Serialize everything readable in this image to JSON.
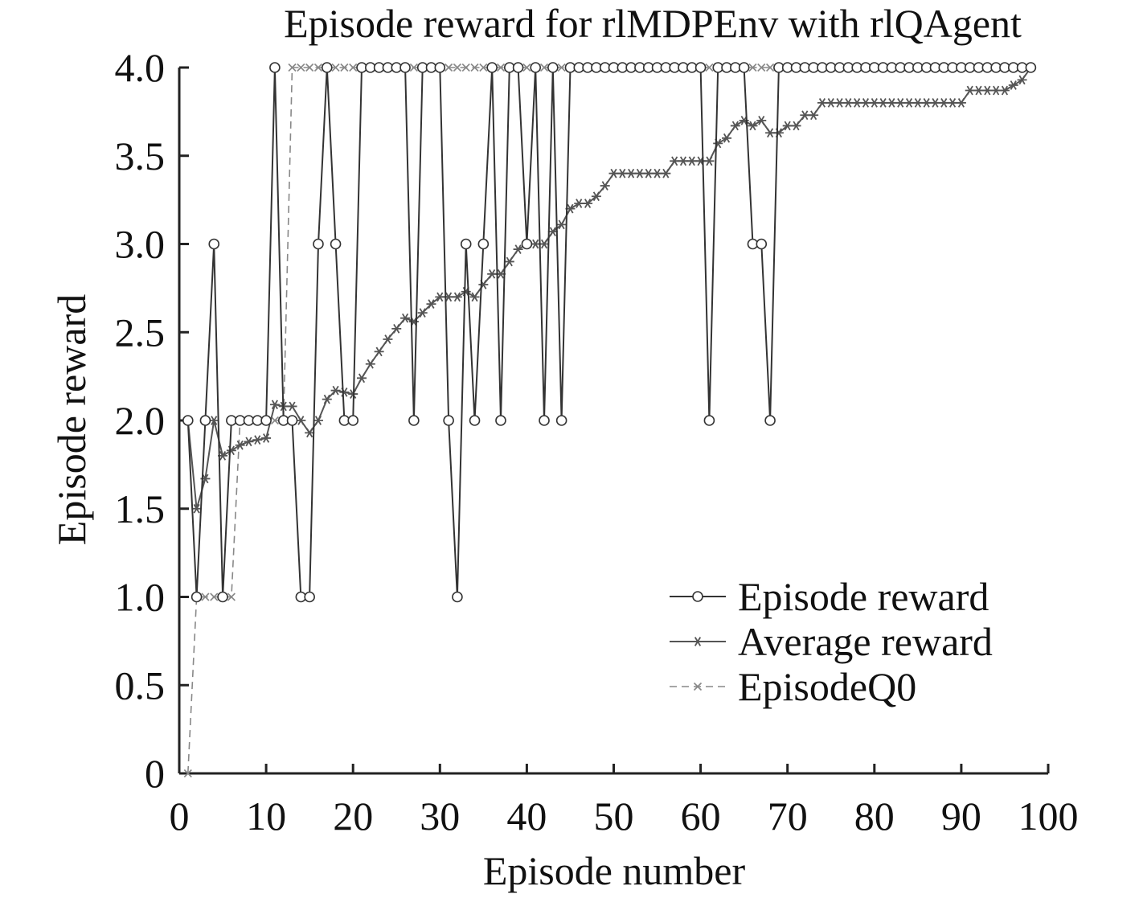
{
  "chart_data": {
    "type": "line",
    "title": "Episode reward for rlMDPEnv with rlQAgent",
    "xlabel": "Episode number",
    "ylabel": "Episode reward",
    "xlim": [
      0,
      100
    ],
    "ylim": [
      0,
      4
    ],
    "x_ticks": [
      0,
      10,
      20,
      30,
      40,
      50,
      60,
      70,
      80,
      90,
      100
    ],
    "x_tick_labels": [
      "0",
      "10",
      "20",
      "30",
      "40",
      "50",
      "60",
      "70",
      "80",
      "90",
      "100"
    ],
    "y_ticks": [
      0,
      0.5,
      1,
      1.5,
      2,
      2.5,
      3,
      3.5,
      4
    ],
    "y_tick_labels": [
      "0",
      "0.5",
      "1.0",
      "1.5",
      "2.0",
      "2.5",
      "3.0",
      "3.5",
      "4.0"
    ],
    "grid": false,
    "legend_position": "bottom-right",
    "episodes": [
      1,
      98
    ],
    "series": [
      {
        "name": "Episode reward",
        "color": "#333333",
        "marker": "circle",
        "line_style": "solid",
        "values": [
          2,
          1,
          2,
          3,
          1,
          2,
          2,
          2,
          2,
          2,
          4,
          2,
          2,
          1,
          1,
          3,
          4,
          3,
          2,
          2,
          4,
          4,
          4,
          4,
          4,
          4,
          2,
          4,
          4,
          4,
          2,
          1,
          3,
          2,
          3,
          4,
          2,
          4,
          4,
          3,
          4,
          2,
          4,
          2,
          4,
          4,
          4,
          4,
          4,
          4,
          4,
          4,
          4,
          4,
          4,
          4,
          4,
          4,
          4,
          4,
          2,
          4,
          4,
          4,
          4,
          3,
          3,
          2,
          4,
          4,
          4,
          4,
          4,
          4,
          4,
          4,
          4,
          4,
          4,
          4,
          4,
          4,
          4,
          4,
          4,
          4,
          4,
          4,
          4,
          4,
          4,
          4,
          4,
          4,
          4,
          4,
          4,
          4
        ]
      },
      {
        "name": "Average reward",
        "color": "#555555",
        "marker": "asterisk",
        "line_style": "solid",
        "values": [
          2,
          1.5,
          1.67,
          2,
          1.8,
          1.83,
          1.86,
          1.88,
          1.89,
          1.9,
          2.09,
          2.08,
          2.08,
          2.0,
          1.93,
          2.0,
          2.12,
          2.17,
          2.16,
          2.15,
          2.24,
          2.32,
          2.39,
          2.46,
          2.52,
          2.58,
          2.56,
          2.61,
          2.66,
          2.7,
          2.7,
          2.7,
          2.73,
          2.7,
          2.77,
          2.83,
          2.83,
          2.9,
          2.97,
          3.0,
          3.0,
          3.0,
          3.07,
          3.11,
          3.2,
          3.23,
          3.23,
          3.27,
          3.33,
          3.4,
          3.4,
          3.4,
          3.4,
          3.4,
          3.4,
          3.4,
          3.47,
          3.47,
          3.47,
          3.47,
          3.47,
          3.57,
          3.6,
          3.67,
          3.7,
          3.67,
          3.7,
          3.63,
          3.63,
          3.67,
          3.67,
          3.73,
          3.73,
          3.8,
          3.8,
          3.8,
          3.8,
          3.8,
          3.8,
          3.8,
          3.8,
          3.8,
          3.8,
          3.8,
          3.8,
          3.8,
          3.8,
          3.8,
          3.8,
          3.8,
          3.87,
          3.87,
          3.87,
          3.87,
          3.87,
          3.9,
          3.93,
          4.0
        ]
      },
      {
        "name": "EpisodeQ0",
        "color": "#888888",
        "marker": "x",
        "line_style": "dashed",
        "values": [
          0,
          1,
          1,
          1,
          1,
          1,
          2,
          2,
          2,
          2,
          2,
          2,
          4,
          4,
          4,
          4,
          4,
          4,
          4,
          4,
          4,
          4,
          4,
          4,
          4,
          4,
          4,
          4,
          4,
          4,
          4,
          4,
          4,
          4,
          4,
          4,
          4,
          4,
          4,
          4,
          4,
          4,
          4,
          4,
          4,
          4,
          4,
          4,
          4,
          4,
          4,
          4,
          4,
          4,
          4,
          4,
          4,
          4,
          4,
          4,
          4,
          4,
          4,
          4,
          4,
          4,
          4,
          4,
          4,
          4,
          4,
          4,
          4,
          4,
          4,
          4,
          4,
          4,
          4,
          4,
          4,
          4,
          4,
          4,
          4,
          4,
          4,
          4,
          4,
          4,
          4,
          4,
          4,
          4,
          4,
          4,
          4,
          4
        ]
      }
    ]
  }
}
